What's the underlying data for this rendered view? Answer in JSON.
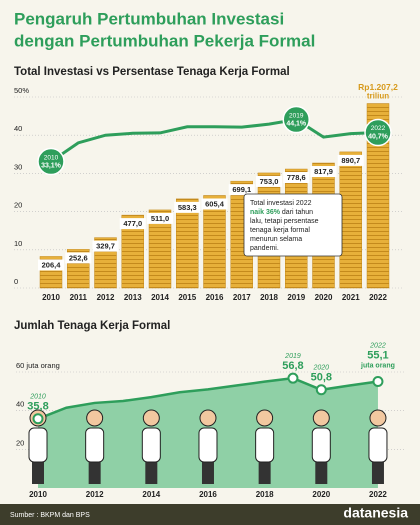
{
  "title_lines": [
    "Pengaruh Pertumbuhan Investasi",
    "dengan Pertumbuhan Pekerja Formal"
  ],
  "chart_data": [
    {
      "type": "combo",
      "title": "Total Investasi vs Persentase Tenaga Kerja Formal",
      "categories": [
        "2010",
        "2011",
        "2012",
        "2013",
        "2014",
        "2015",
        "2016",
        "2017",
        "2018",
        "2019",
        "2020",
        "2021",
        "2022"
      ],
      "ylim": [
        0,
        50
      ],
      "yticks": [
        0,
        10,
        20,
        30,
        40,
        {
          "value": 50,
          "label": "50%"
        }
      ],
      "grid": true,
      "y2lim": [
        0,
        1250
      ],
      "series": [
        {
          "type": "bar",
          "axis": "y2",
          "color": "#e7b03a",
          "values": [
            206.4,
            252.6,
            329.7,
            477.0,
            511.0,
            583.3,
            605.4,
            699.1,
            753.0,
            778.6,
            817.9,
            890.7,
            1207.2
          ],
          "value_labels": [
            "206,4",
            "252,6",
            "329,7",
            "477,0",
            "511,0",
            "583,3",
            "605,4",
            "699,1",
            "753,0",
            "778,6",
            "817,9",
            "890,7",
            "Rp1.207,2"
          ],
          "unit": "triliun"
        },
        {
          "type": "line",
          "color": "#2e9e5b",
          "values": [
            33.1,
            38.0,
            40.0,
            40.5,
            40.6,
            42.2,
            42.2,
            42.1,
            42.9,
            44.1,
            39.5,
            40.4,
            40.7
          ],
          "value_labels": [
            "33,1%",
            null,
            null,
            null,
            null,
            null,
            null,
            null,
            null,
            "44,1%",
            null,
            null,
            "40,7%"
          ]
        }
      ],
      "annotation": [
        "Total investasi 2022",
        "naik 36%",
        " dari tahun",
        "lalu, tetapi persentase",
        "tenaga kerja formal",
        "menurun selama",
        "pandemi."
      ]
    },
    {
      "type": "area",
      "title": "Jumlah Tenaga Kerja Formal",
      "categories": [
        "2010",
        null,
        "2012",
        null,
        "2014",
        null,
        "2016",
        null,
        "2018",
        null,
        "2020",
        null,
        "2022"
      ],
      "ylim": [
        0,
        60
      ],
      "yticks": [
        20,
        40,
        {
          "value": 60,
          "label": "60 juta orang"
        }
      ],
      "grid": true,
      "color": "#2e9e5b",
      "fill": "#8fd0a6",
      "values": [
        35.8,
        41.5,
        44.0,
        45.0,
        47.0,
        49.5,
        51.0,
        53.0,
        55.0,
        56.8,
        50.8,
        53.0,
        55.1
      ],
      "value_labels": [
        "35,8",
        null,
        null,
        null,
        null,
        null,
        null,
        null,
        null,
        "56,8",
        "50,8",
        null,
        "55,1"
      ],
      "point_years": [
        "2010",
        null,
        null,
        null,
        null,
        null,
        null,
        null,
        null,
        "2019",
        "2020",
        null,
        "2022"
      ],
      "unit": "juta orang"
    }
  ],
  "footer": {
    "source": "Sumber : BKPM dan BPS",
    "brand": "datanesia"
  }
}
